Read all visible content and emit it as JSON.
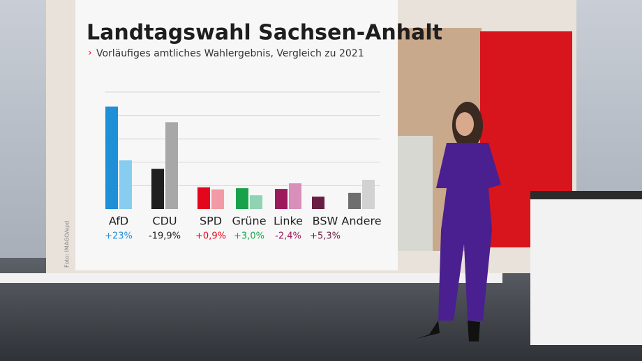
{
  "chart_data": {
    "type": "grouped_bar",
    "title": "Landtagswahl Sachsen-Anhalt",
    "subtitle": "Vorläufiges amtliches Wahlergebnis, Vergleich zu 2021",
    "categories": [
      "AfD",
      "CDU",
      "SPD",
      "Grüne",
      "Linke",
      "BSW",
      "Andere"
    ],
    "series": [
      {
        "colors": [
          "#1f8fd8",
          "#1f1f1f",
          "#e3061c",
          "#17a24a",
          "#9c1a5c",
          "#6a1d43",
          "#6e6e6e"
        ],
        "values": [
          43.8,
          17.2,
          9.3,
          8.9,
          8.6,
          5.3,
          6.9
        ]
      },
      {
        "colors": [
          "#86cdef",
          "#a8a8a8",
          "#f29aa6",
          "#8fd3b2",
          "#d88fba",
          "#d88fba",
          "#d2d2d2"
        ],
        "values": [
          20.8,
          37.1,
          8.4,
          5.9,
          11.0,
          null,
          12.5
        ]
      }
    ],
    "change_labels": [
      "+23%",
      "-19,9%",
      "+0,9%",
      "+3,0%",
      "-2,4%",
      "+5,3%",
      null
    ],
    "change_colors": [
      "#1f8fd8",
      "#222222",
      "#e3061c",
      "#17a24a",
      "#9c1a5c",
      "#6a1d43",
      null
    ],
    "ylim": [
      0,
      50
    ],
    "yticks": [
      10,
      20,
      30,
      40,
      50
    ],
    "grid": true,
    "photo_credit": "Foto: IMAGO/epd"
  }
}
